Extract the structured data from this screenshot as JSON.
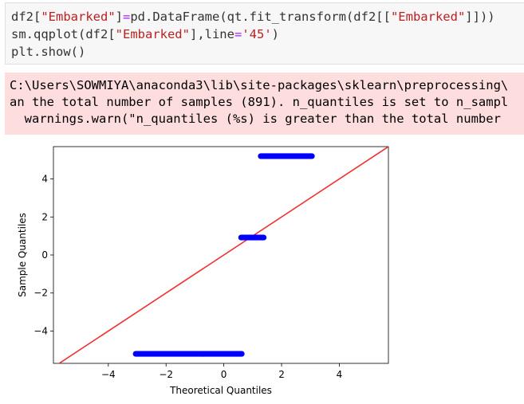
{
  "code_cell": {
    "lines": [
      [
        {
          "text": "df2[",
          "cls": ""
        },
        {
          "text": "\"Embarked\"",
          "cls": "str"
        },
        {
          "text": "]",
          "cls": ""
        },
        {
          "text": "=",
          "cls": "op"
        },
        {
          "text": "pd.DataFrame(qt.fit_transform(df2[[",
          "cls": ""
        },
        {
          "text": "\"Embarked\"",
          "cls": "str"
        },
        {
          "text": "]]))",
          "cls": ""
        }
      ],
      [
        {
          "text": "sm.qqplot(df2[",
          "cls": ""
        },
        {
          "text": "\"Embarked\"",
          "cls": "str"
        },
        {
          "text": "],line",
          "cls": ""
        },
        {
          "text": "=",
          "cls": "op"
        },
        {
          "text": "'45'",
          "cls": "str"
        },
        {
          "text": ")",
          "cls": ""
        }
      ],
      [
        {
          "text": "plt.show()",
          "cls": ""
        }
      ]
    ]
  },
  "warning": {
    "lines": [
      "C:\\Users\\SOWMIYA\\anaconda3\\lib\\site-packages\\sklearn\\preprocessing\\",
      "an the total number of samples (891). n_quantiles is set to n_sampl",
      "  warnings.warn(\"n_quantiles (%s) is greater than the total number"
    ]
  },
  "chart_data": {
    "type": "scatter",
    "xlabel": "Theoretical Quantiles",
    "ylabel": "Sample Quantiles",
    "xlim": [
      -5.9,
      5.7
    ],
    "ylim": [
      -5.7,
      5.7
    ],
    "xticks": [
      -4,
      -2,
      0,
      2,
      4
    ],
    "xtick_labels": [
      "−4",
      "−2",
      "0",
      "2",
      "4"
    ],
    "yticks": [
      -4,
      -2,
      0,
      2,
      4
    ],
    "ytick_labels": [
      "−4",
      "−2",
      "0",
      "2",
      "4"
    ],
    "series": [
      {
        "x_start": -3.05,
        "x_end": 0.62,
        "y": -5.2,
        "count": 190
      },
      {
        "x_start": 0.6,
        "x_end": 1.38,
        "y": 0.92,
        "count": 30
      },
      {
        "x_start": 1.28,
        "x_end": 3.05,
        "y": 5.2,
        "count": 90
      }
    ],
    "reference_line": {
      "label": "45",
      "color": "#f03030"
    },
    "marker_color": "#0000ff",
    "grid": false
  }
}
